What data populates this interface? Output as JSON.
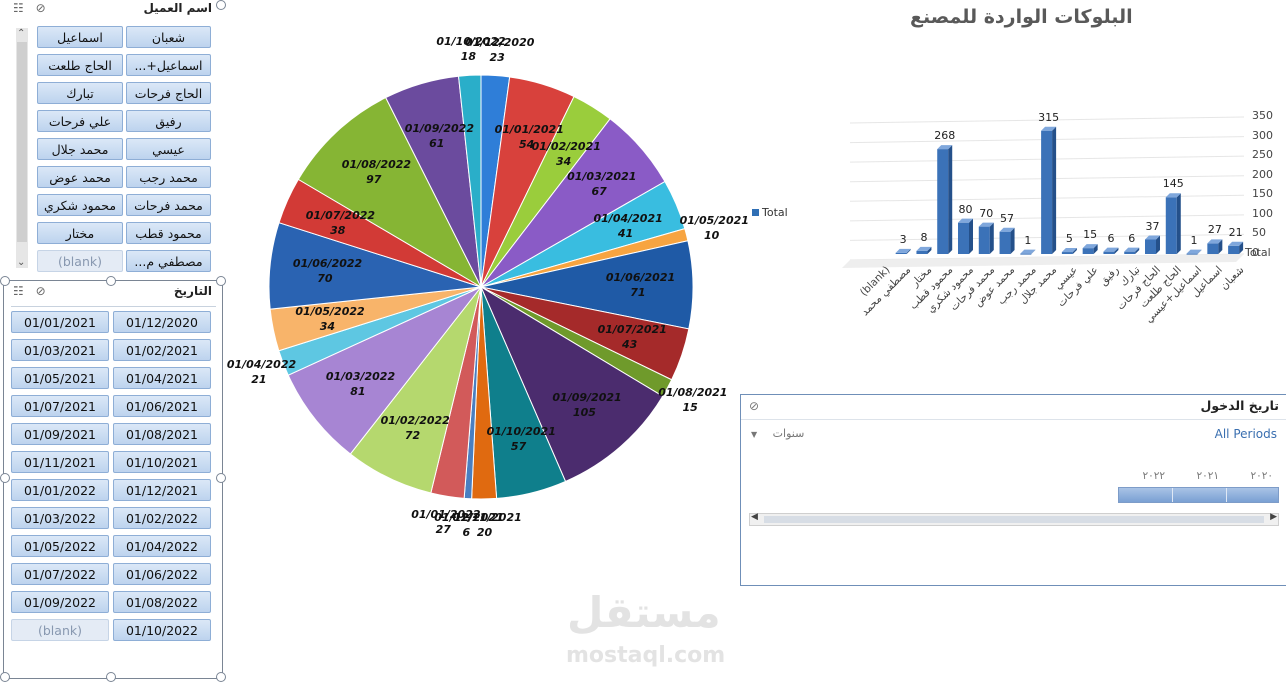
{
  "customer_slicer": {
    "title": "اسم العميل",
    "items": [
      [
        "شعبان",
        "اسماعيل"
      ],
      [
        "اسماعيل+...",
        "الحاج طلعت"
      ],
      [
        "الحاج فرحات",
        "تبارك"
      ],
      [
        "رفيق",
        "علي فرحات"
      ],
      [
        "عيسي",
        "محمد جلال"
      ],
      [
        "محمد رجب",
        "محمد عوض"
      ],
      [
        "محمد فرحات",
        "محمود شكري"
      ],
      [
        "محمود قطب",
        "مختار"
      ],
      [
        "مصطفي م...",
        "(blank)"
      ]
    ]
  },
  "date_slicer": {
    "title": "التاريخ",
    "items": [
      [
        "01/12/2020",
        "01/01/2021"
      ],
      [
        "01/02/2021",
        "01/03/2021"
      ],
      [
        "01/04/2021",
        "01/05/2021"
      ],
      [
        "01/06/2021",
        "01/07/2021"
      ],
      [
        "01/08/2021",
        "01/09/2021"
      ],
      [
        "01/10/2021",
        "01/11/2021"
      ],
      [
        "01/12/2021",
        "01/01/2022"
      ],
      [
        "01/02/2022",
        "01/03/2022"
      ],
      [
        "01/04/2022",
        "01/05/2022"
      ],
      [
        "01/06/2022",
        "01/07/2022"
      ],
      [
        "01/08/2022",
        "01/09/2022"
      ],
      [
        "01/10/2022",
        "(blank)"
      ]
    ]
  },
  "chart_data": [
    {
      "type": "pie",
      "slices": [
        {
          "label": "01/12/2020",
          "value": 23,
          "color": "#2f7ed8"
        },
        {
          "label": "01/01/2021",
          "value": 54,
          "color": "#d8413c"
        },
        {
          "label": "01/02/2021",
          "value": 34,
          "color": "#9acd3c"
        },
        {
          "label": "01/03/2021",
          "value": 67,
          "color": "#8a5bc6"
        },
        {
          "label": "01/04/2021",
          "value": 41,
          "color": "#39bde0"
        },
        {
          "label": "01/05/2021",
          "value": 10,
          "color": "#f7a440"
        },
        {
          "label": "01/06/2021",
          "value": 71,
          "color": "#1f5aa6"
        },
        {
          "label": "01/07/2021",
          "value": 43,
          "color": "#a52a2a"
        },
        {
          "label": "01/08/2021",
          "value": 15,
          "color": "#6f9a2b"
        },
        {
          "label": "01/09/2021",
          "value": 105,
          "color": "#4b2c6e"
        },
        {
          "label": "01/10/2021",
          "value": 57,
          "color": "#0f7f8c"
        },
        {
          "label": "01/11/2021",
          "value": 20,
          "color": "#e06a10"
        },
        {
          "label": "01/12/2021",
          "value": 6,
          "color": "#4a7fc1"
        },
        {
          "label": "01/01/2022",
          "value": 27,
          "color": "#d25a5a"
        },
        {
          "label": "01/02/2022",
          "value": 72,
          "color": "#b5d86e"
        },
        {
          "label": "01/03/2022",
          "value": 81,
          "color": "#a785d3"
        },
        {
          "label": "01/04/2022",
          "value": 21,
          "color": "#5ec7e2"
        },
        {
          "label": "01/05/2022",
          "value": 34,
          "color": "#f8b46a"
        },
        {
          "label": "01/06/2022",
          "value": 70,
          "color": "#2a63b2"
        },
        {
          "label": "01/07/2022",
          "value": 38,
          "color": "#d23a36"
        },
        {
          "label": "01/08/2022",
          "value": 97,
          "color": "#86b534"
        },
        {
          "label": "01/09/2022",
          "value": 61,
          "color": "#6b4b9e"
        },
        {
          "label": "01/10/2022",
          "value": 18,
          "color": "#2aaec9"
        }
      ],
      "legend": [
        "Total"
      ]
    },
    {
      "type": "bar",
      "title": "البلوكات الواردة للمصنع",
      "categories": [
        "(blank)",
        "مصطفي محمد",
        "مختار",
        "محمود قطب",
        "محمود شكري",
        "محمد فرحات",
        "محمد عوض",
        "محمد رجب",
        "محمد جلال",
        "عيسي",
        "علي فرحات",
        "رفيق",
        "تبارك",
        "الحاج فرحات",
        "الحاج طلعت",
        "اسماعيل+عيسي",
        "اسماعيل",
        "شعبان"
      ],
      "values": [
        null,
        3,
        8,
        268,
        80,
        70,
        57,
        1,
        315,
        5,
        15,
        6,
        6,
        37,
        145,
        1,
        27,
        21
      ],
      "value_labels": [
        "",
        "3",
        "8",
        "268",
        "80",
        "70",
        "57",
        "1",
        "315",
        "5",
        "15",
        "6",
        "6",
        "37",
        "145",
        "1",
        "27",
        "21"
      ],
      "ylim": [
        0,
        350
      ],
      "yticks": [
        "0",
        "50",
        "100",
        "150",
        "200",
        "250",
        "300",
        "350"
      ],
      "series_label": "Total"
    }
  ],
  "timeline": {
    "title": "تاريخ الدخول",
    "all_periods": "All Periods",
    "level": "سنوات",
    "years": [
      "٢٠٢٠",
      "٢٠٢١",
      "٢٠٢٢"
    ]
  },
  "watermark": {
    "text": "mostaql.com",
    "logo": "مستقل"
  }
}
